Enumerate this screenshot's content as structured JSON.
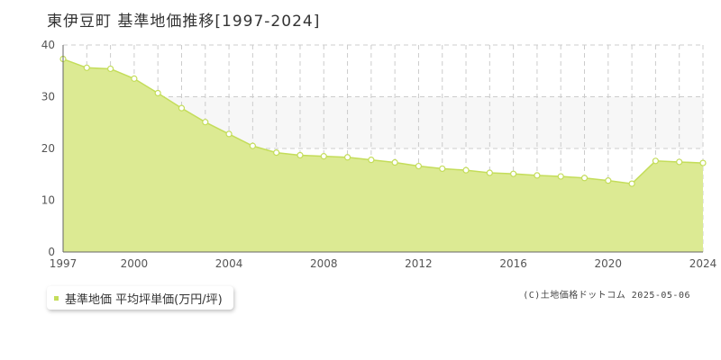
{
  "title": "東伊豆町 基準地価推移[1997-2024]",
  "legend_label": "基準地価 平均坪単価(万円/坪)",
  "credit": "(C)土地価格ドットコム 2025-05-06",
  "colors": {
    "fill": "#dcea93",
    "line": "#c4dd5a",
    "band": "#f7f7f7",
    "grid": "#cccccc"
  },
  "chart_data": {
    "type": "area",
    "title": "東伊豆町 基準地価推移[1997-2024]",
    "xlabel": "",
    "ylabel": "",
    "ylim": [
      0,
      40
    ],
    "xlim": [
      1997,
      2024
    ],
    "yticks": [
      0,
      10,
      20,
      30,
      40
    ],
    "xticks": [
      1997,
      2000,
      2004,
      2008,
      2012,
      2016,
      2020,
      2024
    ],
    "grid": true,
    "legend": "bottom-left",
    "series": [
      {
        "name": "基準地価 平均坪単価(万円/坪)",
        "x": [
          1997,
          1998,
          1999,
          2000,
          2001,
          2002,
          2003,
          2004,
          2005,
          2006,
          2007,
          2008,
          2009,
          2010,
          2011,
          2012,
          2013,
          2014,
          2015,
          2016,
          2017,
          2018,
          2019,
          2020,
          2021,
          2022,
          2023,
          2024
        ],
        "y": [
          37.3,
          35.6,
          35.4,
          33.5,
          30.7,
          27.8,
          25.1,
          22.8,
          20.5,
          19.2,
          18.7,
          18.5,
          18.3,
          17.8,
          17.3,
          16.6,
          16.1,
          15.8,
          15.3,
          15.1,
          14.8,
          14.6,
          14.3,
          13.8,
          13.2,
          17.6,
          17.4,
          17.2
        ]
      }
    ]
  }
}
